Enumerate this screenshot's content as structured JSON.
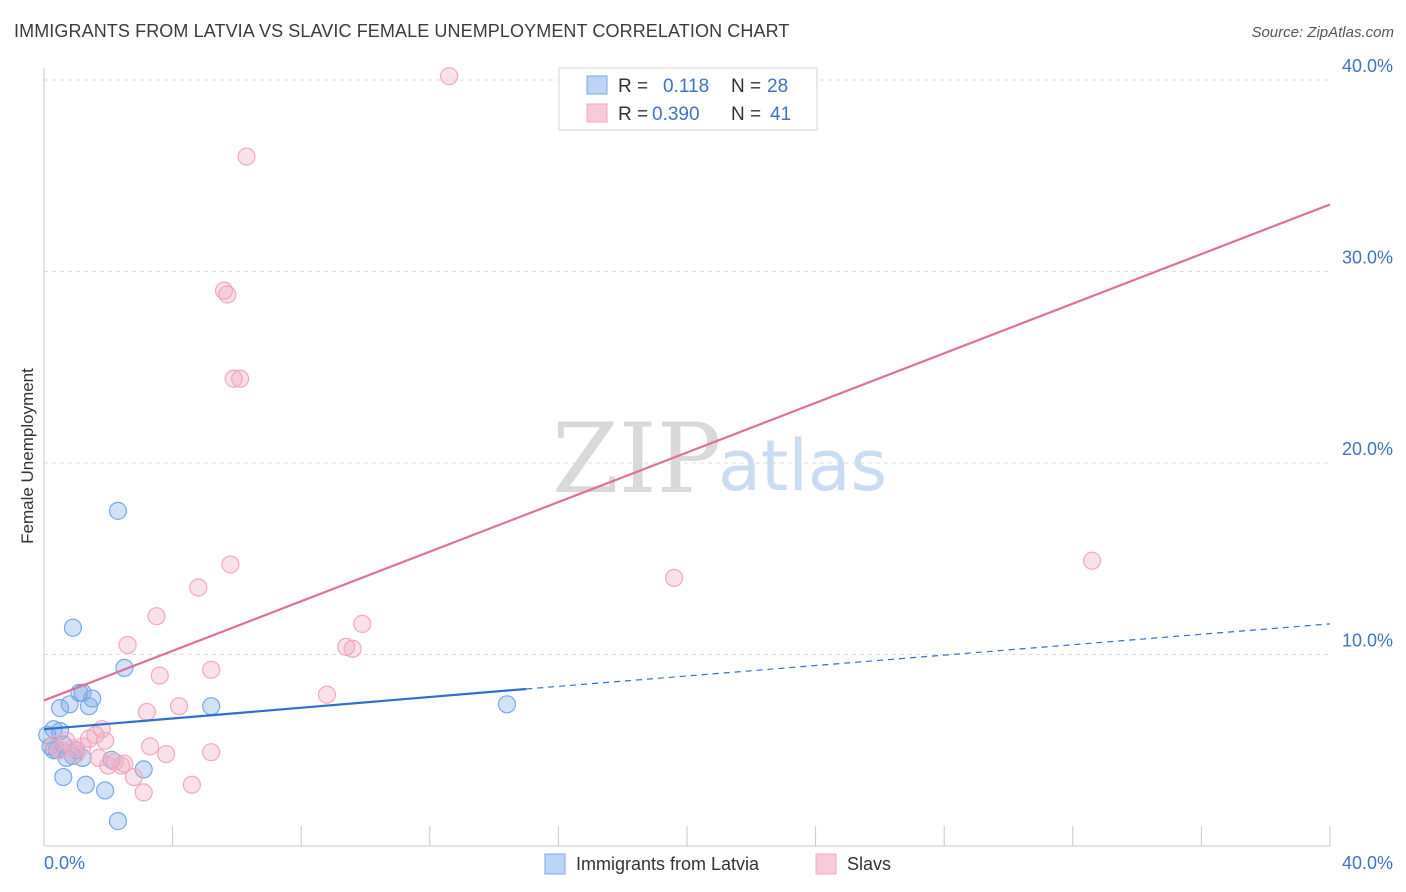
{
  "title": "IMMIGRANTS FROM LATVIA VS SLAVIC FEMALE UNEMPLOYMENT CORRELATION CHART",
  "source": "Source: ZipAtlas.com",
  "watermark": {
    "zip": "ZIP",
    "atlas": "atlas"
  },
  "chart_data": {
    "type": "scatter",
    "title": "IMMIGRANTS FROM LATVIA VS SLAVIC FEMALE UNEMPLOYMENT CORRELATION CHART",
    "xlabel": "",
    "ylabel": "Female Unemployment",
    "xlim": [
      0,
      40
    ],
    "ylim": [
      0,
      40
    ],
    "x_ticks": [
      "0.0%",
      "40.0%"
    ],
    "y_ticks": [
      {
        "value": 10,
        "label": "10.0%"
      },
      {
        "value": 20,
        "label": "20.0%"
      },
      {
        "value": 30,
        "label": "30.0%"
      },
      {
        "value": 40,
        "label": "40.0%"
      }
    ],
    "grid": true,
    "legend_position": "top-center",
    "series": [
      {
        "name": "Immigrants from Latvia",
        "color": "#7aa9e8",
        "line_color": "#2f6fcc",
        "R": "0.118",
        "N": "28",
        "trend": {
          "x0": 0,
          "y0": 6.1,
          "x1": 15,
          "y1": 8.2,
          "x_end": 40,
          "y_end": 11.6
        },
        "points": [
          [
            0.1,
            5.8
          ],
          [
            0.2,
            5.2
          ],
          [
            0.3,
            6.1
          ],
          [
            0.4,
            5.0
          ],
          [
            0.5,
            6.0
          ],
          [
            0.5,
            7.2
          ],
          [
            0.6,
            5.3
          ],
          [
            0.6,
            3.6
          ],
          [
            0.7,
            4.6
          ],
          [
            0.8,
            7.4
          ],
          [
            0.9,
            4.7
          ],
          [
            0.9,
            11.4
          ],
          [
            1.0,
            5.0
          ],
          [
            1.1,
            8.0
          ],
          [
            1.2,
            4.6
          ],
          [
            1.2,
            8.0
          ],
          [
            1.3,
            3.2
          ],
          [
            1.4,
            7.3
          ],
          [
            1.5,
            7.7
          ],
          [
            1.9,
            2.9
          ],
          [
            2.1,
            4.5
          ],
          [
            2.3,
            17.5
          ],
          [
            2.3,
            1.3
          ],
          [
            2.5,
            9.3
          ],
          [
            3.1,
            4.0
          ],
          [
            5.2,
            7.3
          ],
          [
            14.4,
            7.4
          ],
          [
            0.3,
            5.0
          ]
        ]
      },
      {
        "name": "Slavs",
        "color": "#f2a9c0",
        "line_color": "#e0709a",
        "R": "0.390",
        "N": "41",
        "trend": {
          "x0": 0,
          "y0": 7.6,
          "x1": 40,
          "y1": 33.5
        },
        "points": [
          [
            0.3,
            5.3
          ],
          [
            0.5,
            5.0
          ],
          [
            0.7,
            5.5
          ],
          [
            0.9,
            5.1
          ],
          [
            1.0,
            4.8
          ],
          [
            1.2,
            5.2
          ],
          [
            1.4,
            5.6
          ],
          [
            1.6,
            5.8
          ],
          [
            1.7,
            4.6
          ],
          [
            1.8,
            6.1
          ],
          [
            1.9,
            5.5
          ],
          [
            2.0,
            4.2
          ],
          [
            2.2,
            4.4
          ],
          [
            2.4,
            4.2
          ],
          [
            2.5,
            4.3
          ],
          [
            2.6,
            10.5
          ],
          [
            2.8,
            3.6
          ],
          [
            3.1,
            2.8
          ],
          [
            3.2,
            7.0
          ],
          [
            3.3,
            5.2
          ],
          [
            3.5,
            12.0
          ],
          [
            3.6,
            8.9
          ],
          [
            3.8,
            4.8
          ],
          [
            4.2,
            7.3
          ],
          [
            4.6,
            3.2
          ],
          [
            4.8,
            13.5
          ],
          [
            5.2,
            4.9
          ],
          [
            5.2,
            9.2
          ],
          [
            5.6,
            29.0
          ],
          [
            5.7,
            28.8
          ],
          [
            5.8,
            14.7
          ],
          [
            5.9,
            24.4
          ],
          [
            6.1,
            24.4
          ],
          [
            6.3,
            36.0
          ],
          [
            8.8,
            7.9
          ],
          [
            9.4,
            10.4
          ],
          [
            9.6,
            10.3
          ],
          [
            9.9,
            11.6
          ],
          [
            12.6,
            40.2
          ],
          [
            19.6,
            14.0
          ],
          [
            32.6,
            14.9
          ]
        ]
      }
    ]
  },
  "legend": {
    "r_label": "R =",
    "n_label": "N ="
  }
}
